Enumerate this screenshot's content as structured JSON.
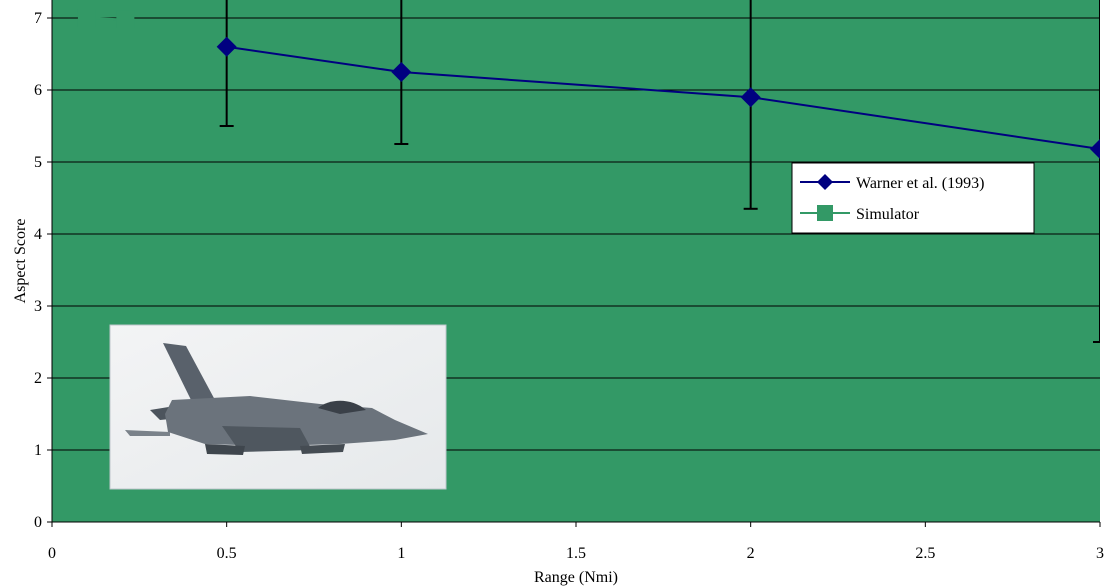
{
  "chart_data": {
    "type": "line",
    "xlabel": "Range (Nmi)",
    "ylabel": "Aspect Score",
    "xlim": [
      0,
      3
    ],
    "ylim": [
      0,
      7
    ],
    "x_ticks": [
      "0",
      "0.5",
      "1",
      "1.5",
      "2",
      "2.5",
      "3"
    ],
    "y_ticks": [
      "0",
      "1",
      "2",
      "3",
      "4",
      "5",
      "6",
      "7"
    ],
    "grid": "horizontal",
    "legend": {
      "placement": "right",
      "entries": [
        "Warner et al. (1993)",
        "Simulator"
      ]
    },
    "series": [
      {
        "name": "Warner et al. (1993)",
        "color": "#000080",
        "marker": "diamond",
        "x": [
          0.5,
          1,
          2,
          3
        ],
        "y": [
          6.6,
          6.25,
          5.9,
          5.18
        ],
        "err_low": [
          5.5,
          5.25,
          4.35,
          2.5
        ],
        "err_high": [
          7.0,
          7.0,
          7.0,
          7.0
        ]
      },
      {
        "name": "Simulator",
        "color": "#339966",
        "marker": "square",
        "x": [
          0.1,
          0.21
        ],
        "y": [
          7.0,
          6.98
        ]
      }
    ],
    "plot_background": "#339966",
    "inset_image": "f16-fighter-jet"
  }
}
